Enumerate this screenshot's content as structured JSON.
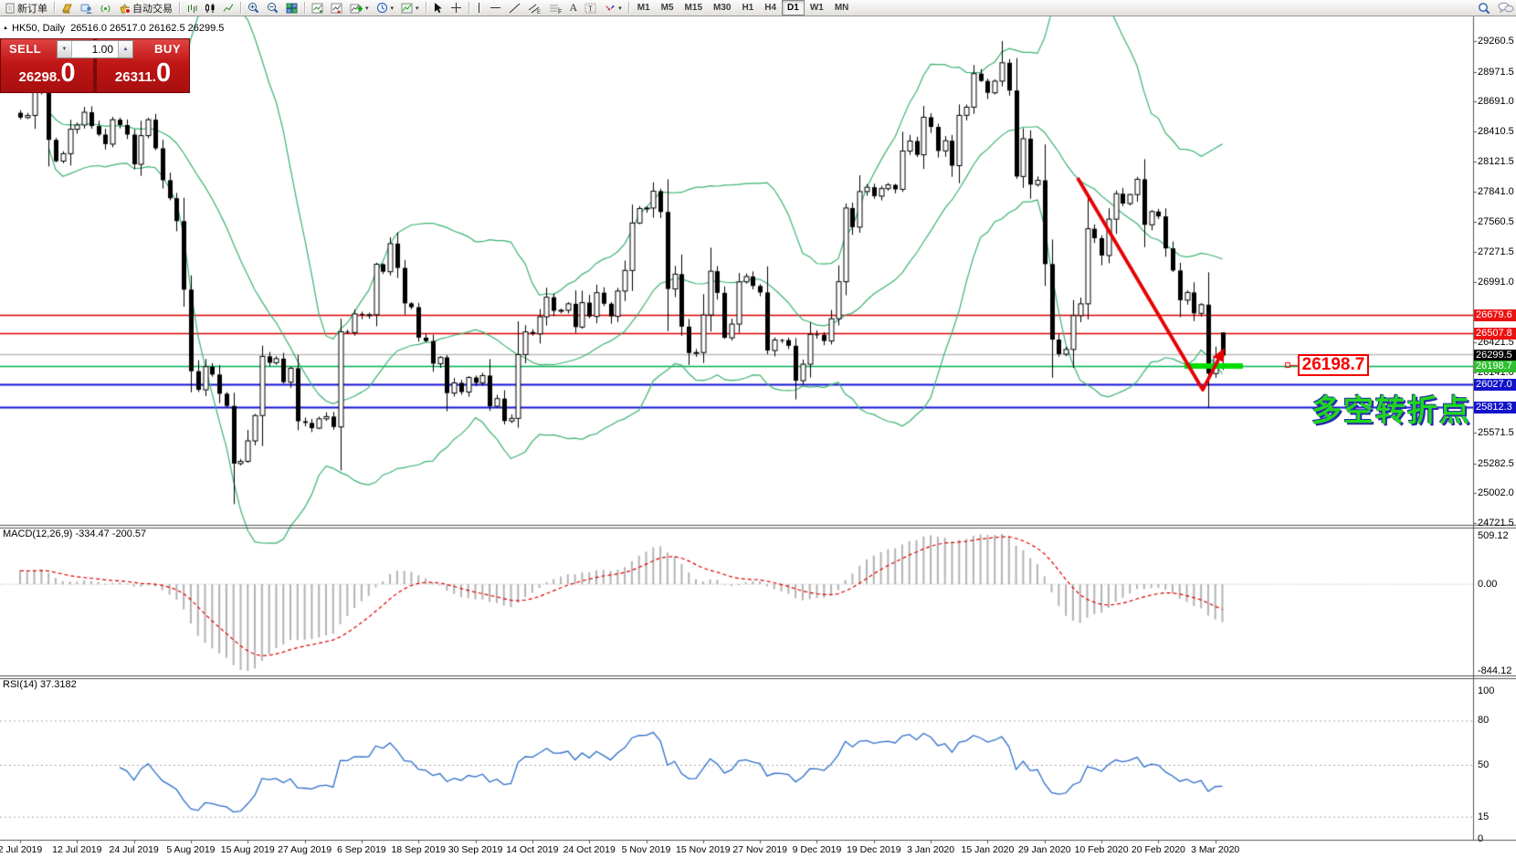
{
  "toolbar": {
    "new_order_label": "新订单",
    "autotrading_label": "自动交易",
    "timeframes": [
      "M1",
      "M5",
      "M15",
      "M30",
      "H1",
      "H4",
      "D1",
      "W1",
      "MN"
    ],
    "active_timeframe": "D1"
  },
  "trade_panel": {
    "sell_label": "SELL",
    "buy_label": "BUY",
    "volume": "1.00",
    "sell_price_main": "26298.",
    "sell_price_pip": "0",
    "buy_price_main": "26311.",
    "buy_price_pip": "0"
  },
  "panes": {
    "symbol_header": "HK50, Daily  26516.0 26517.0 26162.5 26299.5",
    "macd_label": "MACD(12,26,9) -334.47 -200.57",
    "rsi_label": "RSI(14) 37.3182"
  },
  "annotations": {
    "price_label": "26198.7",
    "turning_point_text": "多空转折点",
    "bar_color": "#00dd00",
    "arrow_color": "#e60000"
  },
  "chart_data": {
    "type": "candlestick",
    "title": "HK50, Daily",
    "last_ohlc": {
      "open": 26516.0,
      "high": 26517.0,
      "low": 26162.5,
      "close": 26299.5
    },
    "bid": 26298.0,
    "ask": 26311.0,
    "ylim": [
      24721.5,
      29260.5
    ],
    "closes": [
      28540,
      28560,
      28795,
      28775,
      28330,
      28130,
      28200,
      28430,
      28470,
      28590,
      28460,
      28380,
      28290,
      28520,
      28470,
      28380,
      28100,
      28370,
      28520,
      28250,
      27950,
      27780,
      27565,
      26920,
      26151,
      25976,
      26194,
      26120,
      25939,
      25824,
      25281,
      25302,
      25495,
      25734,
      26291,
      26231,
      26270,
      26048,
      26179,
      25680,
      25664,
      25615,
      25703,
      25724,
      25626,
      26523,
      26515,
      26691,
      26681,
      26683,
      27159,
      27088,
      27353,
      27124,
      26790,
      26754,
      26468,
      26435,
      26222,
      26281,
      25945,
      26041,
      25955,
      26092,
      26042,
      26110,
      25821,
      25893,
      25682,
      25707,
      26308,
      26521,
      26503,
      26664,
      26848,
      26720,
      26725,
      26786,
      26567,
      26797,
      26667,
      26891,
      26787,
      26668,
      26906,
      27100,
      27547,
      27683,
      27688,
      27847,
      27651,
      26926,
      27065,
      26571,
      26323,
      26327,
      26681,
      27093,
      26889,
      26466,
      26595,
      26993,
      27043,
      26954,
      26893,
      26346,
      26445,
      26444,
      26391,
      26062,
      26217,
      26498,
      26494,
      26436,
      26645,
      26994,
      27688,
      27508,
      27843,
      27884,
      27800,
      27871,
      27906,
      27864,
      28225,
      28319,
      28189,
      28543,
      28452,
      28226,
      28322,
      28087,
      28561,
      28638,
      28954,
      28885,
      28773,
      28883,
      29056,
      28795,
      27985,
      28341,
      27909,
      27949,
      27160,
      26449,
      26312,
      26356,
      26675,
      26786,
      27493,
      27404,
      27241,
      27583,
      27823,
      27730,
      27815,
      27959,
      27530,
      27655,
      27609,
      27308,
      27100,
      26820,
      26893,
      26696,
      26778,
      26129,
      26291,
      26299.5
    ],
    "extremes": {
      "30": {
        "l": 24899
      },
      "138": {
        "h": 29260.5
      },
      "169": {
        "o": 26516.0,
        "h": 26517.0,
        "l": 26162.5,
        "c": 26299.5
      }
    },
    "date_ticks": [
      "2 Jul 2019",
      "12 Jul 2019",
      "24 Jul 2019",
      "5 Aug 2019",
      "15 Aug 2019",
      "27 Aug 2019",
      "6 Sep 2019",
      "18 Sep 2019",
      "30 Sep 2019",
      "14 Oct 2019",
      "24 Oct 2019",
      "5 Nov 2019",
      "15 Nov 2019",
      "27 Nov 2019",
      "9 Dec 2019",
      "19 Dec 2019",
      "3 Jan 2020",
      "15 Jan 2020",
      "29 Jan 2020",
      "10 Feb 2020",
      "20 Feb 2020",
      "3 Mar 2020"
    ],
    "price_axis_ticks": [
      29260.5,
      28971.5,
      28691.0,
      28410.5,
      28121.5,
      27841.0,
      27560.5,
      27271.5,
      26991.0,
      26421.5,
      26141.0,
      25571.5,
      25282.5,
      25002.0,
      24721.5
    ],
    "price_badges": [
      {
        "label": "26679.6",
        "price": 26679.6,
        "bg": "#ee1111"
      },
      {
        "label": "26507.8",
        "price": 26507.8,
        "bg": "#ee1111"
      },
      {
        "label": "26299.5",
        "price": 26299.5,
        "bg": "#000000"
      },
      {
        "label": "26198.7",
        "price": 26198.7,
        "bg": "#2fbf2f"
      },
      {
        "label": "26027.0",
        "price": 26027.0,
        "bg": "#1212cc"
      },
      {
        "label": "25812.3",
        "price": 25812.3,
        "bg": "#1212cc"
      }
    ],
    "hlines": [
      {
        "price": 26679.6,
        "color": "#dd0000",
        "width": 1.5
      },
      {
        "price": 26507.8,
        "color": "#dd0000",
        "width": 1.5
      },
      {
        "price": 26310.0,
        "color": "#bcbcbc",
        "width": 1.5
      },
      {
        "price": 26198.7,
        "color": "#00b050",
        "width": 1.5
      },
      {
        "price": 26027.0,
        "color": "#1212d6",
        "width": 2
      },
      {
        "price": 25812.3,
        "color": "#1212d6",
        "width": 2
      }
    ],
    "indicators": {
      "bollinger": {
        "period": 20,
        "deviation": 2,
        "color": "#3CB371"
      },
      "macd": {
        "fast": 12,
        "slow": 26,
        "signal": 9,
        "main_value": -334.47,
        "signal_value": -200.57,
        "axis_labels": [
          "509.12",
          "0.00",
          "-844.12"
        ],
        "histogram_color": "#b3b3b3",
        "signal_color": "#e00000"
      },
      "rsi": {
        "period": 14,
        "value": 37.3182,
        "levels": [
          80,
          50,
          15
        ],
        "axis_labels": [
          "100",
          "80",
          "50",
          "15",
          "0"
        ],
        "axis_values": [
          100,
          80,
          50,
          15,
          0
        ],
        "color": "#2d6fc9"
      }
    }
  }
}
